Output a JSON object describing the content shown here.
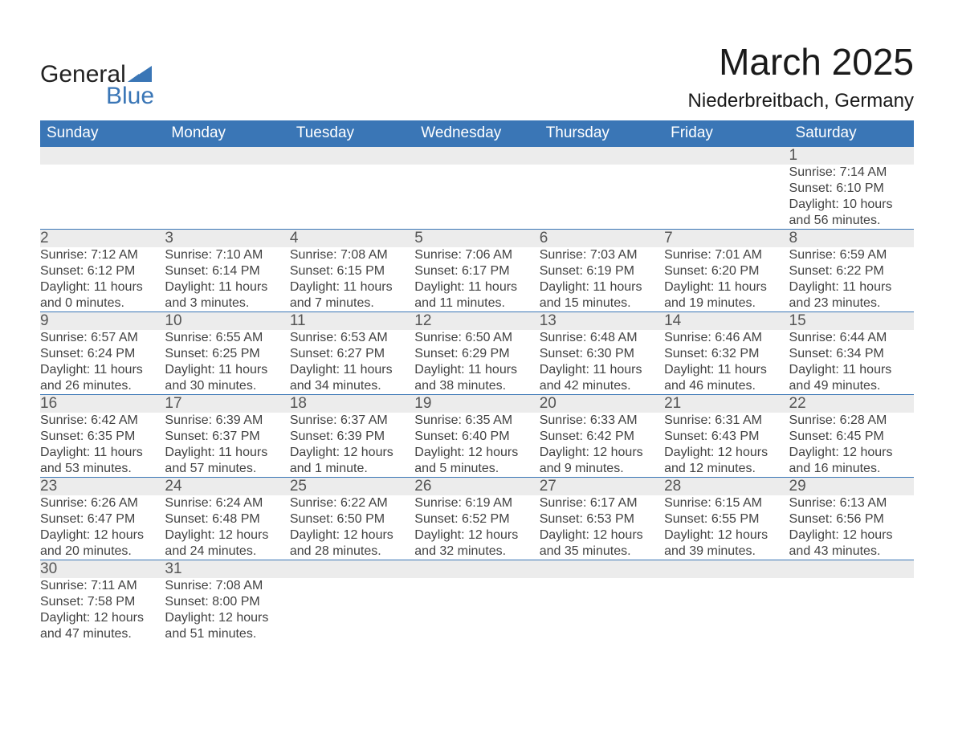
{
  "logo": {
    "word1": "General",
    "word2": "Blue",
    "triangle_color": "#3a76b6",
    "text_color_1": "#222222",
    "text_color_2": "#3a76b6"
  },
  "title": "March 2025",
  "location": "Niederbreitbach, Germany",
  "colors": {
    "header_bg": "#3a76b6",
    "header_text": "#ffffff",
    "daynum_bg": "#ececec",
    "row_divider": "#3a76b6",
    "body_text": "#424242",
    "page_bg": "#ffffff"
  },
  "typography": {
    "title_fontsize": 46,
    "location_fontsize": 24,
    "weekday_fontsize": 19,
    "daynum_fontsize": 19,
    "cell_fontsize": 16,
    "font_family": "Arial"
  },
  "weekdays": [
    "Sunday",
    "Monday",
    "Tuesday",
    "Wednesday",
    "Thursday",
    "Friday",
    "Saturday"
  ],
  "weeks": [
    [
      null,
      null,
      null,
      null,
      null,
      null,
      {
        "n": "1",
        "sr": "Sunrise: 7:14 AM",
        "ss": "Sunset: 6:10 PM",
        "d1": "Daylight: 10 hours",
        "d2": "and 56 minutes."
      }
    ],
    [
      {
        "n": "2",
        "sr": "Sunrise: 7:12 AM",
        "ss": "Sunset: 6:12 PM",
        "d1": "Daylight: 11 hours",
        "d2": "and 0 minutes."
      },
      {
        "n": "3",
        "sr": "Sunrise: 7:10 AM",
        "ss": "Sunset: 6:14 PM",
        "d1": "Daylight: 11 hours",
        "d2": "and 3 minutes."
      },
      {
        "n": "4",
        "sr": "Sunrise: 7:08 AM",
        "ss": "Sunset: 6:15 PM",
        "d1": "Daylight: 11 hours",
        "d2": "and 7 minutes."
      },
      {
        "n": "5",
        "sr": "Sunrise: 7:06 AM",
        "ss": "Sunset: 6:17 PM",
        "d1": "Daylight: 11 hours",
        "d2": "and 11 minutes."
      },
      {
        "n": "6",
        "sr": "Sunrise: 7:03 AM",
        "ss": "Sunset: 6:19 PM",
        "d1": "Daylight: 11 hours",
        "d2": "and 15 minutes."
      },
      {
        "n": "7",
        "sr": "Sunrise: 7:01 AM",
        "ss": "Sunset: 6:20 PM",
        "d1": "Daylight: 11 hours",
        "d2": "and 19 minutes."
      },
      {
        "n": "8",
        "sr": "Sunrise: 6:59 AM",
        "ss": "Sunset: 6:22 PM",
        "d1": "Daylight: 11 hours",
        "d2": "and 23 minutes."
      }
    ],
    [
      {
        "n": "9",
        "sr": "Sunrise: 6:57 AM",
        "ss": "Sunset: 6:24 PM",
        "d1": "Daylight: 11 hours",
        "d2": "and 26 minutes."
      },
      {
        "n": "10",
        "sr": "Sunrise: 6:55 AM",
        "ss": "Sunset: 6:25 PM",
        "d1": "Daylight: 11 hours",
        "d2": "and 30 minutes."
      },
      {
        "n": "11",
        "sr": "Sunrise: 6:53 AM",
        "ss": "Sunset: 6:27 PM",
        "d1": "Daylight: 11 hours",
        "d2": "and 34 minutes."
      },
      {
        "n": "12",
        "sr": "Sunrise: 6:50 AM",
        "ss": "Sunset: 6:29 PM",
        "d1": "Daylight: 11 hours",
        "d2": "and 38 minutes."
      },
      {
        "n": "13",
        "sr": "Sunrise: 6:48 AM",
        "ss": "Sunset: 6:30 PM",
        "d1": "Daylight: 11 hours",
        "d2": "and 42 minutes."
      },
      {
        "n": "14",
        "sr": "Sunrise: 6:46 AM",
        "ss": "Sunset: 6:32 PM",
        "d1": "Daylight: 11 hours",
        "d2": "and 46 minutes."
      },
      {
        "n": "15",
        "sr": "Sunrise: 6:44 AM",
        "ss": "Sunset: 6:34 PM",
        "d1": "Daylight: 11 hours",
        "d2": "and 49 minutes."
      }
    ],
    [
      {
        "n": "16",
        "sr": "Sunrise: 6:42 AM",
        "ss": "Sunset: 6:35 PM",
        "d1": "Daylight: 11 hours",
        "d2": "and 53 minutes."
      },
      {
        "n": "17",
        "sr": "Sunrise: 6:39 AM",
        "ss": "Sunset: 6:37 PM",
        "d1": "Daylight: 11 hours",
        "d2": "and 57 minutes."
      },
      {
        "n": "18",
        "sr": "Sunrise: 6:37 AM",
        "ss": "Sunset: 6:39 PM",
        "d1": "Daylight: 12 hours",
        "d2": "and 1 minute."
      },
      {
        "n": "19",
        "sr": "Sunrise: 6:35 AM",
        "ss": "Sunset: 6:40 PM",
        "d1": "Daylight: 12 hours",
        "d2": "and 5 minutes."
      },
      {
        "n": "20",
        "sr": "Sunrise: 6:33 AM",
        "ss": "Sunset: 6:42 PM",
        "d1": "Daylight: 12 hours",
        "d2": "and 9 minutes."
      },
      {
        "n": "21",
        "sr": "Sunrise: 6:31 AM",
        "ss": "Sunset: 6:43 PM",
        "d1": "Daylight: 12 hours",
        "d2": "and 12 minutes."
      },
      {
        "n": "22",
        "sr": "Sunrise: 6:28 AM",
        "ss": "Sunset: 6:45 PM",
        "d1": "Daylight: 12 hours",
        "d2": "and 16 minutes."
      }
    ],
    [
      {
        "n": "23",
        "sr": "Sunrise: 6:26 AM",
        "ss": "Sunset: 6:47 PM",
        "d1": "Daylight: 12 hours",
        "d2": "and 20 minutes."
      },
      {
        "n": "24",
        "sr": "Sunrise: 6:24 AM",
        "ss": "Sunset: 6:48 PM",
        "d1": "Daylight: 12 hours",
        "d2": "and 24 minutes."
      },
      {
        "n": "25",
        "sr": "Sunrise: 6:22 AM",
        "ss": "Sunset: 6:50 PM",
        "d1": "Daylight: 12 hours",
        "d2": "and 28 minutes."
      },
      {
        "n": "26",
        "sr": "Sunrise: 6:19 AM",
        "ss": "Sunset: 6:52 PM",
        "d1": "Daylight: 12 hours",
        "d2": "and 32 minutes."
      },
      {
        "n": "27",
        "sr": "Sunrise: 6:17 AM",
        "ss": "Sunset: 6:53 PM",
        "d1": "Daylight: 12 hours",
        "d2": "and 35 minutes."
      },
      {
        "n": "28",
        "sr": "Sunrise: 6:15 AM",
        "ss": "Sunset: 6:55 PM",
        "d1": "Daylight: 12 hours",
        "d2": "and 39 minutes."
      },
      {
        "n": "29",
        "sr": "Sunrise: 6:13 AM",
        "ss": "Sunset: 6:56 PM",
        "d1": "Daylight: 12 hours",
        "d2": "and 43 minutes."
      }
    ],
    [
      {
        "n": "30",
        "sr": "Sunrise: 7:11 AM",
        "ss": "Sunset: 7:58 PM",
        "d1": "Daylight: 12 hours",
        "d2": "and 47 minutes."
      },
      {
        "n": "31",
        "sr": "Sunrise: 7:08 AM",
        "ss": "Sunset: 8:00 PM",
        "d1": "Daylight: 12 hours",
        "d2": "and 51 minutes."
      },
      null,
      null,
      null,
      null,
      null
    ]
  ]
}
